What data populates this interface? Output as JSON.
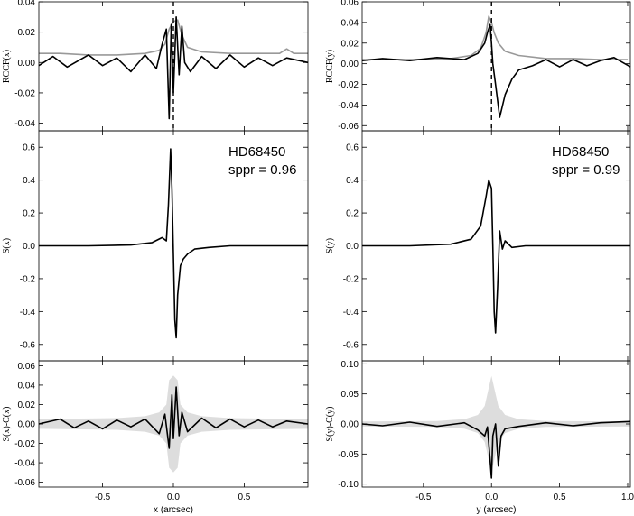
{
  "chart_data": [
    {
      "type": "line",
      "panel": "left-top",
      "ylabel": "RCCF(x)",
      "xlim": [
        -0.95,
        0.95
      ],
      "ylim": [
        -0.045,
        0.04
      ],
      "yticks": [
        0.04,
        0.02,
        0.0,
        -0.02,
        -0.04
      ],
      "ytick_labels": [
        "0.04",
        "0.02",
        "0.00",
        "-0.02",
        "-0.04"
      ],
      "xticks": [
        -0.5,
        0.0,
        0.5
      ],
      "vline": 0.0,
      "series": [
        {
          "color": "#999999",
          "x": [
            -0.95,
            -0.8,
            -0.6,
            -0.4,
            -0.2,
            -0.1,
            -0.06,
            -0.03,
            0.0,
            0.03,
            0.06,
            0.1,
            0.2,
            0.4,
            0.6,
            0.75,
            0.8,
            0.85,
            0.95
          ],
          "y": [
            0.006,
            0.006,
            0.005,
            0.005,
            0.006,
            0.008,
            0.012,
            0.022,
            0.027,
            0.028,
            0.018,
            0.01,
            0.007,
            0.006,
            0.006,
            0.006,
            0.009,
            0.006,
            0.006
          ]
        },
        {
          "color": "#000000",
          "x": [
            -0.95,
            -0.85,
            -0.75,
            -0.6,
            -0.5,
            -0.4,
            -0.3,
            -0.2,
            -0.12,
            -0.08,
            -0.05,
            -0.03,
            -0.015,
            0.0,
            0.02,
            0.04,
            0.06,
            0.08,
            0.12,
            0.2,
            0.3,
            0.4,
            0.5,
            0.6,
            0.7,
            0.8,
            0.95
          ],
          "y": [
            -0.002,
            0.004,
            -0.003,
            0.005,
            -0.002,
            0.003,
            -0.006,
            0.005,
            -0.004,
            0.012,
            0.022,
            -0.037,
            0.025,
            -0.02,
            0.03,
            -0.008,
            0.024,
            0.0,
            -0.006,
            0.004,
            -0.004,
            0.005,
            -0.003,
            0.003,
            -0.002,
            0.003,
            0.0
          ]
        }
      ]
    },
    {
      "type": "line",
      "panel": "left-middle",
      "ylabel": "S(x)",
      "annotation": [
        "HD68450",
        "sppr = 0.96"
      ],
      "xlim": [
        -0.95,
        0.95
      ],
      "ylim": [
        -0.7,
        0.7
      ],
      "yticks": [
        0.6,
        0.4,
        0.2,
        0.0,
        -0.2,
        -0.4,
        -0.6
      ],
      "ytick_labels": [
        "0.6",
        "0.4",
        "0.2",
        "0.0",
        "-0.2",
        "-0.4",
        "-0.6"
      ],
      "xticks": [
        -0.5,
        0.0,
        0.5
      ],
      "series": [
        {
          "color": "#000000",
          "x": [
            -0.95,
            -0.6,
            -0.3,
            -0.15,
            -0.08,
            -0.05,
            -0.035,
            -0.02,
            -0.01,
            0.0,
            0.01,
            0.02,
            0.03,
            0.05,
            0.07,
            0.1,
            0.15,
            0.25,
            0.4,
            0.6,
            0.95
          ],
          "y": [
            0.0,
            0.0,
            0.005,
            0.02,
            0.05,
            0.03,
            0.25,
            0.59,
            0.35,
            -0.05,
            -0.45,
            -0.56,
            -0.3,
            -0.12,
            -0.08,
            -0.05,
            -0.02,
            -0.01,
            0.0,
            0.0,
            0.0
          ]
        }
      ]
    },
    {
      "type": "area",
      "panel": "left-bottom",
      "ylabel": "S(x)-C(x)",
      "xlabel": "x (arcsec)",
      "xlim": [
        -0.95,
        0.95
      ],
      "ylim": [
        -0.065,
        0.065
      ],
      "yticks": [
        0.06,
        0.04,
        0.02,
        0.0,
        -0.02,
        -0.04,
        -0.06
      ],
      "ytick_labels": [
        "0.06",
        "0.04",
        "0.02",
        "0.00",
        "-0.02",
        "-0.04",
        "-0.06"
      ],
      "xticks": [
        -0.5,
        0.0,
        0.5
      ],
      "xtick_labels": [
        "-0.5",
        "0.0",
        "0.5"
      ],
      "band": {
        "color": "#dddddd",
        "x": [
          -0.95,
          -0.4,
          -0.2,
          -0.1,
          -0.05,
          -0.03,
          0.0,
          0.03,
          0.05,
          0.1,
          0.2,
          0.4,
          0.95
        ],
        "half_width": [
          0.005,
          0.006,
          0.008,
          0.012,
          0.02,
          0.045,
          0.05,
          0.045,
          0.02,
          0.012,
          0.008,
          0.006,
          0.005
        ]
      },
      "series": [
        {
          "color": "#000000",
          "x": [
            -0.95,
            -0.8,
            -0.7,
            -0.6,
            -0.5,
            -0.4,
            -0.3,
            -0.2,
            -0.1,
            -0.06,
            -0.03,
            -0.01,
            0.0,
            0.02,
            0.04,
            0.06,
            0.1,
            0.2,
            0.3,
            0.4,
            0.5,
            0.6,
            0.7,
            0.8,
            0.95
          ],
          "y": [
            0.0,
            0.005,
            -0.004,
            0.003,
            -0.005,
            0.004,
            -0.003,
            0.005,
            -0.01,
            0.01,
            -0.025,
            0.03,
            -0.015,
            0.038,
            -0.012,
            0.012,
            -0.008,
            0.006,
            -0.004,
            0.005,
            -0.003,
            0.004,
            -0.003,
            0.003,
            0.0
          ]
        }
      ]
    },
    {
      "type": "line",
      "panel": "right-top",
      "ylabel": "RCCF(y)",
      "xlim": [
        -0.95,
        1.02
      ],
      "ylim": [
        -0.065,
        0.06
      ],
      "yticks": [
        0.06,
        0.04,
        0.02,
        0.0,
        -0.02,
        -0.04,
        -0.06
      ],
      "ytick_labels": [
        "0.06",
        "0.04",
        "0.02",
        "0.00",
        "-0.02",
        "-0.04",
        "-0.06"
      ],
      "xticks": [
        -0.5,
        0.0,
        0.5,
        1.0
      ],
      "vline": 0.0,
      "series": [
        {
          "color": "#999999",
          "x": [
            -0.95,
            -0.6,
            -0.3,
            -0.15,
            -0.08,
            -0.04,
            -0.02,
            0.0,
            0.02,
            0.05,
            0.1,
            0.2,
            0.4,
            0.6,
            0.8,
            1.0
          ],
          "y": [
            0.004,
            0.004,
            0.005,
            0.008,
            0.015,
            0.03,
            0.046,
            0.04,
            0.03,
            0.02,
            0.012,
            0.008,
            0.005,
            0.005,
            0.004,
            0.004
          ]
        },
        {
          "color": "#000000",
          "x": [
            -0.95,
            -0.8,
            -0.6,
            -0.4,
            -0.2,
            -0.1,
            -0.05,
            -0.03,
            -0.01,
            0.0,
            0.01,
            0.03,
            0.06,
            0.1,
            0.15,
            0.2,
            0.3,
            0.4,
            0.5,
            0.6,
            0.7,
            0.8,
            0.9,
            1.02
          ],
          "y": [
            0.003,
            0.005,
            0.003,
            0.006,
            0.004,
            0.01,
            0.02,
            0.03,
            0.038,
            0.02,
            0.0,
            -0.02,
            -0.052,
            -0.03,
            -0.015,
            -0.006,
            -0.002,
            0.004,
            -0.003,
            0.004,
            -0.002,
            0.003,
            0.006,
            -0.003
          ]
        }
      ]
    },
    {
      "type": "line",
      "panel": "right-middle",
      "ylabel": "S(y)",
      "annotation": [
        "HD68450",
        "sppr = 0.99"
      ],
      "xlim": [
        -0.95,
        1.02
      ],
      "ylim": [
        -0.7,
        0.7
      ],
      "yticks": [
        0.6,
        0.4,
        0.2,
        0.0,
        -0.2,
        -0.4,
        -0.6
      ],
      "ytick_labels": [
        "0.6",
        "0.4",
        "0.2",
        "0.0",
        "-0.2",
        "-0.4",
        "-0.6"
      ],
      "xticks": [
        -0.5,
        0.0,
        0.5,
        1.0
      ],
      "series": [
        {
          "color": "#000000",
          "x": [
            -0.95,
            -0.6,
            -0.3,
            -0.15,
            -0.08,
            -0.04,
            -0.02,
            0.0,
            0.01,
            0.02,
            0.03,
            0.045,
            0.06,
            0.08,
            0.1,
            0.15,
            0.25,
            0.4,
            0.6,
            1.02
          ],
          "y": [
            0.0,
            0.0,
            0.01,
            0.04,
            0.12,
            0.3,
            0.4,
            0.35,
            0.0,
            -0.4,
            -0.53,
            -0.25,
            0.09,
            -0.02,
            0.03,
            -0.01,
            0.0,
            0.0,
            0.0,
            0.0
          ]
        }
      ]
    },
    {
      "type": "area",
      "panel": "right-bottom",
      "ylabel": "S(y)-C(y)",
      "xlabel": "y (arcsec)",
      "xlim": [
        -0.95,
        1.02
      ],
      "ylim": [
        -0.105,
        0.105
      ],
      "yticks": [
        0.1,
        0.05,
        0.0,
        -0.05,
        -0.1
      ],
      "ytick_labels": [
        "0.10",
        "0.05",
        "0.00",
        "-0.05",
        "-0.10"
      ],
      "xticks": [
        -0.5,
        0.0,
        0.5,
        1.0
      ],
      "xtick_labels": [
        "-0.5",
        "0.0",
        "0.5",
        "1.0"
      ],
      "band": {
        "color": "#dddddd",
        "x": [
          -0.95,
          -0.4,
          -0.2,
          -0.1,
          -0.05,
          -0.02,
          0.0,
          0.02,
          0.05,
          0.1,
          0.2,
          0.4,
          1.02
        ],
        "half_width": [
          0.004,
          0.005,
          0.008,
          0.015,
          0.03,
          0.06,
          0.08,
          0.06,
          0.03,
          0.015,
          0.008,
          0.005,
          0.004
        ]
      },
      "series": [
        {
          "color": "#000000",
          "x": [
            -0.95,
            -0.8,
            -0.6,
            -0.4,
            -0.2,
            -0.1,
            -0.05,
            -0.03,
            -0.01,
            0.0,
            0.01,
            0.03,
            0.05,
            0.07,
            0.1,
            0.2,
            0.4,
            0.6,
            0.8,
            1.02
          ],
          "y": [
            0.0,
            -0.003,
            0.003,
            -0.004,
            0.002,
            -0.01,
            -0.02,
            -0.005,
            -0.06,
            -0.09,
            -0.02,
            0.0,
            -0.07,
            -0.02,
            -0.008,
            -0.004,
            0.002,
            -0.003,
            0.002,
            0.004
          ]
        }
      ]
    }
  ]
}
